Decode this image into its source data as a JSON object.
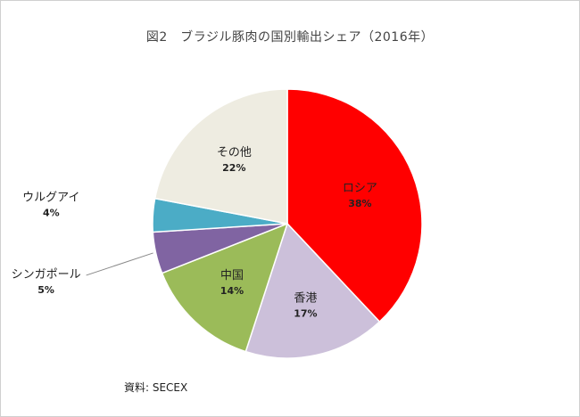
{
  "title": "図2　ブラジル豚肉の国別輸出シェア（2016年）",
  "source": "資料: SECEX",
  "chart_data": {
    "type": "pie",
    "title": "図2　ブラジル豚肉の国別輸出シェア（2016年）",
    "unit": "%",
    "legend": "none",
    "start": "12 o'clock",
    "direction": "clockwise",
    "slices": [
      {
        "label": "ロシア",
        "value": 38,
        "pct": "38%",
        "color": "#ff0000"
      },
      {
        "label": "香港",
        "value": 17,
        "pct": "17%",
        "color": "#ccc0da"
      },
      {
        "label": "中国",
        "value": 14,
        "pct": "14%",
        "color": "#9bbb59"
      },
      {
        "label": "シンガポール",
        "value": 5,
        "pct": "5%",
        "color": "#8064a2"
      },
      {
        "label": "ウルグアイ",
        "value": 4,
        "pct": "4%",
        "color": "#4bacc6"
      },
      {
        "label": "その他",
        "value": 22,
        "pct": "22%",
        "color": "#eeece1"
      }
    ]
  }
}
